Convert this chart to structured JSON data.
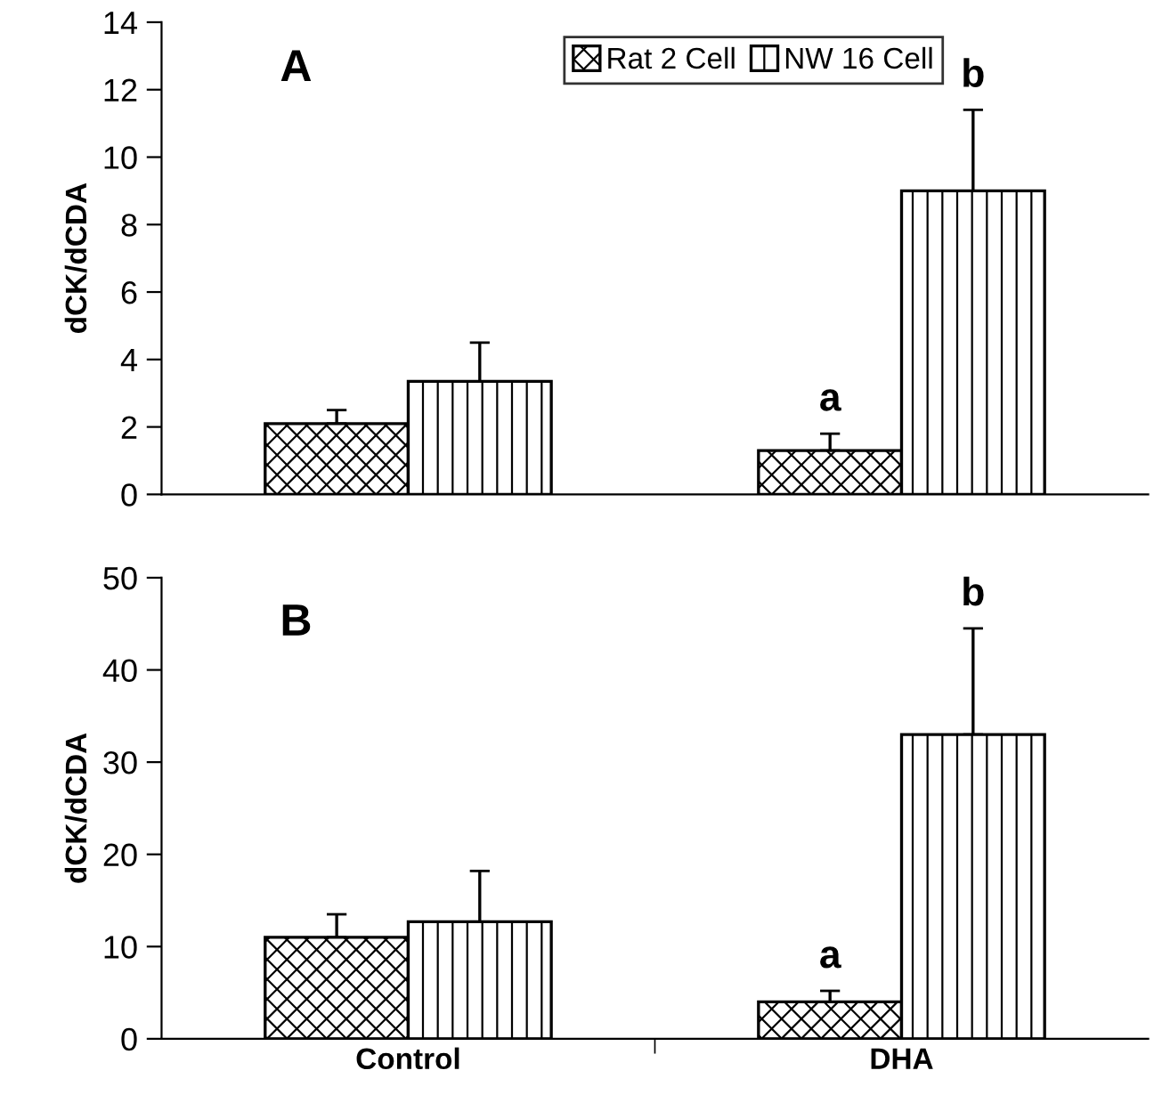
{
  "chart_data": [
    {
      "type": "bar",
      "title": "A",
      "ylabel": "dCK/dCDA",
      "categories": [
        null,
        null
      ],
      "tick_labels": "y",
      "ylim": [
        0,
        14
      ],
      "yticks": [
        0,
        2,
        4,
        6,
        8,
        10,
        12,
        14
      ],
      "grid": false,
      "legend": "top",
      "series": [
        {
          "name": "Rat 2 Cell",
          "color": "#000000",
          "values": [
            2.1,
            1.3
          ],
          "errors": [
            0.4,
            0.5
          ]
        },
        {
          "name": "NW 16 Cell",
          "color": "#000000",
          "values": [
            3.35,
            9.0
          ],
          "errors": [
            1.15,
            2.4
          ]
        }
      ],
      "annotations": [
        "a",
        "b"
      ]
    },
    {
      "type": "bar",
      "title": "B",
      "ylabel": "dCK/dCDA",
      "categories": [
        "Control",
        "DHA"
      ],
      "ylim": [
        0,
        50
      ],
      "yticks": [
        0,
        10,
        20,
        30,
        40,
        50
      ],
      "grid": false,
      "series": [
        {
          "color": "#000000",
          "values": [
            11,
            4
          ],
          "errors": [
            2.5,
            1.2
          ]
        },
        {
          "color": "#000000",
          "values": [
            12.7,
            33
          ],
          "errors": [
            5.5,
            11.5
          ]
        }
      ],
      "annotations": [
        "a",
        "b"
      ]
    }
  ]
}
